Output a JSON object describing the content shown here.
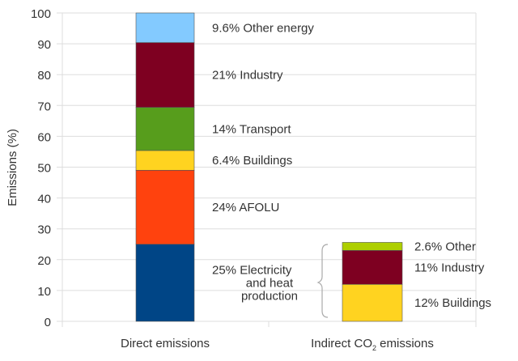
{
  "chart_data": {
    "type": "bar",
    "stacked": true,
    "title": "",
    "xlabel": "",
    "ylabel": "Emissions (%)",
    "ylim": [
      0,
      100
    ],
    "yticks": [
      0,
      10,
      20,
      30,
      40,
      50,
      60,
      70,
      80,
      90,
      100
    ],
    "grid": true,
    "categories": [
      {
        "label": "Direct emissions",
        "label_sub": "",
        "label_suffix": ""
      },
      {
        "label": "Indirect CO",
        "label_sub": "2",
        "label_suffix": " emissions"
      }
    ],
    "bars": [
      {
        "category": "Direct emissions",
        "segments": [
          {
            "name": "Electricity and heat production",
            "value": 25,
            "color": "#004586",
            "label": [
              "25%  Electricity",
              "and heat",
              "production"
            ]
          },
          {
            "name": "AFOLU",
            "value": 24,
            "color": "#ff420e",
            "label": [
              "24% AFOLU"
            ]
          },
          {
            "name": "Buildings",
            "value": 6.4,
            "color": "#ffd320",
            "label": [
              "6.4% Buildings"
            ]
          },
          {
            "name": "Transport",
            "value": 14,
            "color": "#579d1c",
            "label": [
              "14% Transport"
            ]
          },
          {
            "name": "Industry",
            "value": 21,
            "color": "#7e0021",
            "label": [
              "21% Industry"
            ]
          },
          {
            "name": "Other energy",
            "value": 9.6,
            "color": "#83caff",
            "label": [
              "9.6% Other energy"
            ]
          }
        ]
      },
      {
        "category": "Indirect CO2 emissions",
        "segments": [
          {
            "name": "Buildings",
            "value": 12,
            "color": "#ffd320",
            "label": [
              "12%  Buildings"
            ]
          },
          {
            "name": "Industry",
            "value": 11,
            "color": "#7e0021",
            "label": [
              "11%  Industry"
            ]
          },
          {
            "name": "Other",
            "value": 2.6,
            "color": "#aecf00",
            "label": [
              "2.6%  Other"
            ]
          }
        ]
      }
    ]
  }
}
